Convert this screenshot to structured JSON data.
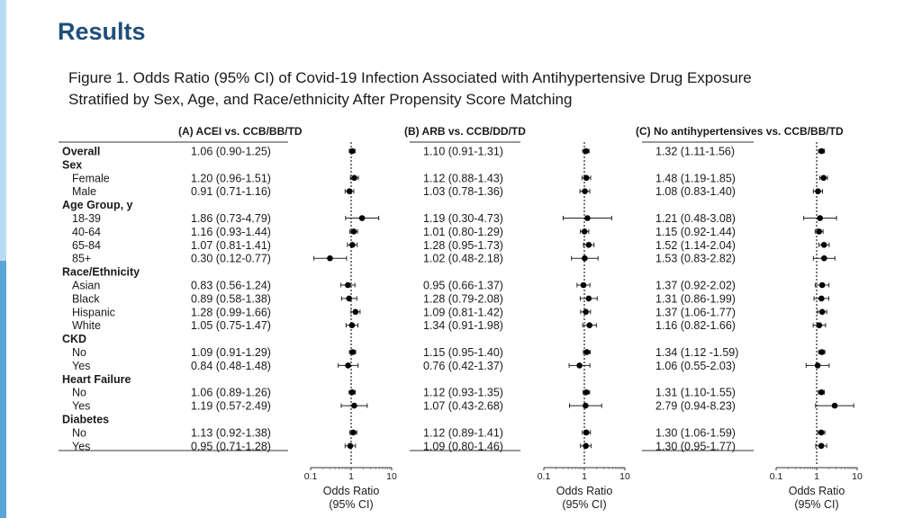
{
  "slide": {
    "title": "Results",
    "caption_line1": "Figure 1. Odds Ratio (95% CI) of Covid-19 Infection Associated with Antihypertensive Drug Exposure",
    "caption_line2": "Stratified by Sex, Age, and Race/ethnicity After Propensity Score Matching",
    "accent_color": "#5aa6d6",
    "title_color": "#1f4e79"
  },
  "chart_data": {
    "type": "forest",
    "x_scale": "log",
    "xlim": [
      0.1,
      10
    ],
    "ticks": [
      "0.1",
      "1",
      "10"
    ],
    "tick_values": [
      0.1,
      1,
      10
    ],
    "xlabel_line1": "Odds Ratio",
    "xlabel_line2": "(95% CI)",
    "reference_line": 1,
    "rows": [
      {
        "label": "Overall",
        "bold": true
      },
      {
        "label": "Sex",
        "bold": true,
        "header": true
      },
      {
        "label": "Female"
      },
      {
        "label": "Male"
      },
      {
        "label": "Age Group, y",
        "bold": true,
        "header": true
      },
      {
        "label": "18-39"
      },
      {
        "label": "40-64"
      },
      {
        "label": "65-84"
      },
      {
        "label": "85+"
      },
      {
        "label": "Race/Ethnicity",
        "bold": true,
        "header": true
      },
      {
        "label": "Asian"
      },
      {
        "label": "Black"
      },
      {
        "label": "Hispanic"
      },
      {
        "label": "White"
      },
      {
        "label": "CKD",
        "bold": true,
        "header": true
      },
      {
        "label": "No"
      },
      {
        "label": "Yes"
      },
      {
        "label": "Heart Failure",
        "bold": true,
        "header": true
      },
      {
        "label": "No"
      },
      {
        "label": "Yes"
      },
      {
        "label": "Diabetes",
        "bold": true,
        "header": true
      },
      {
        "label": "No"
      },
      {
        "label": "Yes"
      }
    ],
    "panels": [
      {
        "title": "(A) ACEI vs. CCB/BB/TD",
        "estimates": [
          {
            "text": "1.06 (0.90-1.25)",
            "or": 1.06,
            "lo": 0.9,
            "hi": 1.25
          },
          null,
          {
            "text": "1.20 (0.96-1.51)",
            "or": 1.2,
            "lo": 0.96,
            "hi": 1.51
          },
          {
            "text": "0.91 (0.71-1.16)",
            "or": 0.91,
            "lo": 0.71,
            "hi": 1.16
          },
          null,
          {
            "text": "1.86 (0.73-4.79)",
            "or": 1.86,
            "lo": 0.73,
            "hi": 4.79
          },
          {
            "text": "1.16 (0.93-1.44)",
            "or": 1.16,
            "lo": 0.93,
            "hi": 1.44
          },
          {
            "text": "1.07 (0.81-1.41)",
            "or": 1.07,
            "lo": 0.81,
            "hi": 1.41
          },
          {
            "text": "0.30 (0.12-0.77)",
            "or": 0.3,
            "lo": 0.12,
            "hi": 0.77
          },
          null,
          {
            "text": "0.83 (0.56-1.24)",
            "or": 0.83,
            "lo": 0.56,
            "hi": 1.24
          },
          {
            "text": "0.89 (0.58-1.38)",
            "or": 0.89,
            "lo": 0.58,
            "hi": 1.38
          },
          {
            "text": "1.28 (0.99-1.66)",
            "or": 1.28,
            "lo": 0.99,
            "hi": 1.66
          },
          {
            "text": "1.05 (0.75-1.47)",
            "or": 1.05,
            "lo": 0.75,
            "hi": 1.47
          },
          null,
          {
            "text": "1.09 (0.91-1.29)",
            "or": 1.09,
            "lo": 0.91,
            "hi": 1.29
          },
          {
            "text": "0.84 (0.48-1.48)",
            "or": 0.84,
            "lo": 0.48,
            "hi": 1.48
          },
          null,
          {
            "text": "1.06 (0.89-1.26)",
            "or": 1.06,
            "lo": 0.89,
            "hi": 1.26
          },
          {
            "text": "1.19 (0.57-2.49)",
            "or": 1.19,
            "lo": 0.57,
            "hi": 2.49
          },
          null,
          {
            "text": "1.13 (0.92-1.38)",
            "or": 1.13,
            "lo": 0.92,
            "hi": 1.38
          },
          {
            "text": "0.95 (0.71-1.28)",
            "or": 0.95,
            "lo": 0.71,
            "hi": 1.28
          }
        ]
      },
      {
        "title": "(B) ARB vs. CCB/DD/TD",
        "estimates": [
          {
            "text": "1.10 (0.91-1.31)",
            "or": 1.1,
            "lo": 0.91,
            "hi": 1.31
          },
          null,
          {
            "text": "1.12 (0.88-1.43)",
            "or": 1.12,
            "lo": 0.88,
            "hi": 1.43
          },
          {
            "text": "1.03 (0.78-1.36)",
            "or": 1.03,
            "lo": 0.78,
            "hi": 1.36
          },
          null,
          {
            "text": "1.19 (0.30-4.73)",
            "or": 1.19,
            "lo": 0.3,
            "hi": 4.73
          },
          {
            "text": "1.01 (0.80-1.29)",
            "or": 1.01,
            "lo": 0.8,
            "hi": 1.29
          },
          {
            "text": "1.28 (0.95-1.73)",
            "or": 1.28,
            "lo": 0.95,
            "hi": 1.73
          },
          {
            "text": "1.02 (0.48-2.18)",
            "or": 1.02,
            "lo": 0.48,
            "hi": 2.18
          },
          null,
          {
            "text": "0.95 (0.66-1.37)",
            "or": 0.95,
            "lo": 0.66,
            "hi": 1.37
          },
          {
            "text": "1.28 (0.79-2.08)",
            "or": 1.28,
            "lo": 0.79,
            "hi": 2.08
          },
          {
            "text": "1.09 (0.81-1.42)",
            "or": 1.09,
            "lo": 0.81,
            "hi": 1.42
          },
          {
            "text": "1.34 (0.91-1.98)",
            "or": 1.34,
            "lo": 0.91,
            "hi": 1.98
          },
          null,
          {
            "text": "1.15 (0.95-1.40)",
            "or": 1.15,
            "lo": 0.95,
            "hi": 1.4
          },
          {
            "text": "0.76 (0.42-1.37)",
            "or": 0.76,
            "lo": 0.42,
            "hi": 1.37
          },
          null,
          {
            "text": "1.12 (0.93-1.35)",
            "or": 1.12,
            "lo": 0.93,
            "hi": 1.35
          },
          {
            "text": "1.07 (0.43-2.68)",
            "or": 1.07,
            "lo": 0.43,
            "hi": 2.68
          },
          null,
          {
            "text": "1.12 (0.89-1.41)",
            "or": 1.12,
            "lo": 0.89,
            "hi": 1.41
          },
          {
            "text": "1.09 (0.80-1.46)",
            "or": 1.09,
            "lo": 0.8,
            "hi": 1.46
          }
        ]
      },
      {
        "title": "(C) No antihypertensives vs. CCB/BB/TD",
        "estimates": [
          {
            "text": "1.32 (1.11-1.56)",
            "or": 1.32,
            "lo": 1.11,
            "hi": 1.56
          },
          null,
          {
            "text": "1.48 (1.19-1.85)",
            "or": 1.48,
            "lo": 1.19,
            "hi": 1.85
          },
          {
            "text": "1.08 (0.83-1.40)",
            "or": 1.08,
            "lo": 0.83,
            "hi": 1.4
          },
          null,
          {
            "text": "1.21 (0.48-3.08)",
            "or": 1.21,
            "lo": 0.48,
            "hi": 3.08
          },
          {
            "text": "1.15 (0.92-1.44)",
            "or": 1.15,
            "lo": 0.92,
            "hi": 1.44
          },
          {
            "text": "1.52 (1.14-2.04)",
            "or": 1.52,
            "lo": 1.14,
            "hi": 2.04
          },
          {
            "text": "1.53 (0.83-2.82)",
            "or": 1.53,
            "lo": 0.83,
            "hi": 2.82
          },
          null,
          {
            "text": "1.37 (0.92-2.02)",
            "or": 1.37,
            "lo": 0.92,
            "hi": 2.02
          },
          {
            "text": "1.31 (0.86-1.99)",
            "or": 1.31,
            "lo": 0.86,
            "hi": 1.99
          },
          {
            "text": "1.37 (1.06-1.77)",
            "or": 1.37,
            "lo": 1.06,
            "hi": 1.77
          },
          {
            "text": "1.16 (0.82-1.66)",
            "or": 1.16,
            "lo": 0.82,
            "hi": 1.66
          },
          null,
          {
            "text": "1.34 (1.12 -1.59)",
            "or": 1.34,
            "lo": 1.12,
            "hi": 1.59
          },
          {
            "text": "1.06 (0.55-2.03)",
            "or": 1.06,
            "lo": 0.55,
            "hi": 2.03
          },
          null,
          {
            "text": "1.31 (1.10-1.55)",
            "or": 1.31,
            "lo": 1.1,
            "hi": 1.55
          },
          {
            "text": "2.79 (0.94-8.23)",
            "or": 2.79,
            "lo": 0.94,
            "hi": 8.23
          },
          null,
          {
            "text": "1.30 (1.06-1.59)",
            "or": 1.3,
            "lo": 1.06,
            "hi": 1.59
          },
          {
            "text": "1.30 (0.95-1.77)",
            "or": 1.3,
            "lo": 0.95,
            "hi": 1.77
          }
        ]
      }
    ]
  }
}
